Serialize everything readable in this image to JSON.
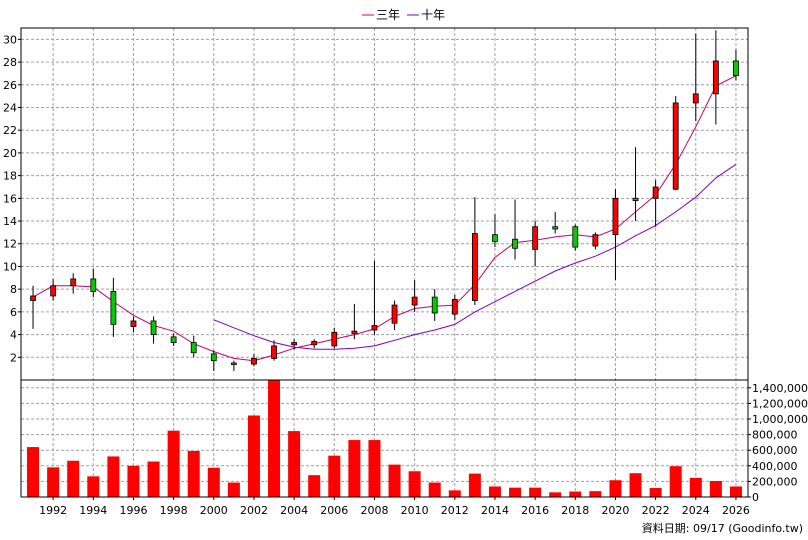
{
  "chart_data": {
    "type": "candlestick",
    "legend": [
      {
        "name": "三年",
        "color": "#cc0066"
      },
      {
        "name": "十年",
        "color": "#8000c0"
      }
    ],
    "price_axis": {
      "ticks": [
        2,
        4,
        6,
        8,
        10,
        12,
        14,
        16,
        18,
        20,
        22,
        24,
        26,
        28,
        30
      ],
      "min": 0,
      "max": 31
    },
    "volume_axis": {
      "ticks": [
        0,
        200000,
        400000,
        600000,
        800000,
        1000000,
        1200000,
        1400000
      ],
      "tick_labels": [
        "0",
        "200,000",
        "400,000",
        "600,000",
        "800,000",
        "1,000,000",
        "1,200,000",
        "1,400,000"
      ],
      "min": 0,
      "max": 1500000
    },
    "x_axis": {
      "ticks": [
        1992,
        1994,
        1996,
        1998,
        2000,
        2002,
        2004,
        2006,
        2008,
        2010,
        2012,
        2014,
        2016,
        2018,
        2020,
        2022,
        2024,
        2026
      ]
    },
    "candles": [
      {
        "year": 1991,
        "open": 7.0,
        "close": 7.4,
        "high": 8.3,
        "low": 4.5
      },
      {
        "year": 1992,
        "open": 7.4,
        "close": 8.3,
        "high": 8.9,
        "low": 7.0
      },
      {
        "year": 1993,
        "open": 8.3,
        "close": 8.9,
        "high": 9.4,
        "low": 7.6
      },
      {
        "year": 1994,
        "open": 8.9,
        "close": 7.8,
        "high": 9.8,
        "low": 7.3
      },
      {
        "year": 1995,
        "open": 7.8,
        "close": 4.9,
        "high": 9.0,
        "low": 3.8
      },
      {
        "year": 1996,
        "open": 4.7,
        "close": 5.2,
        "high": 5.6,
        "low": 4.2
      },
      {
        "year": 1997,
        "open": 5.2,
        "close": 4.0,
        "high": 5.6,
        "low": 3.2
      },
      {
        "year": 1998,
        "open": 3.8,
        "close": 3.3,
        "high": 4.1,
        "low": 3.0
      },
      {
        "year": 1999,
        "open": 3.3,
        "close": 2.4,
        "high": 3.9,
        "low": 2.0
      },
      {
        "year": 2000,
        "open": 2.3,
        "close": 1.7,
        "high": 2.6,
        "low": 0.8
      },
      {
        "year": 2001,
        "open": 1.5,
        "close": 1.4,
        "high": 1.7,
        "low": 0.8
      },
      {
        "year": 2002,
        "open": 1.4,
        "close": 1.9,
        "high": 2.3,
        "low": 1.2
      },
      {
        "year": 2003,
        "open": 1.9,
        "close": 3.0,
        "high": 3.5,
        "low": 1.7
      },
      {
        "year": 2004,
        "open": 3.1,
        "close": 3.3,
        "high": 3.6,
        "low": 2.7
      },
      {
        "year": 2005,
        "open": 3.1,
        "close": 3.4,
        "high": 3.6,
        "low": 2.8
      },
      {
        "year": 2006,
        "open": 3.0,
        "close": 4.2,
        "high": 4.6,
        "low": 2.8
      },
      {
        "year": 2007,
        "open": 4.1,
        "close": 4.3,
        "high": 6.7,
        "low": 3.6
      },
      {
        "year": 2008,
        "open": 4.4,
        "close": 4.8,
        "high": 10.5,
        "low": 4.0
      },
      {
        "year": 2009,
        "open": 5.0,
        "close": 6.6,
        "high": 7.0,
        "low": 4.4
      },
      {
        "year": 2010,
        "open": 6.6,
        "close": 7.3,
        "high": 8.8,
        "low": 6.0
      },
      {
        "year": 2011,
        "open": 7.3,
        "close": 5.9,
        "high": 8.0,
        "low": 5.2
      },
      {
        "year": 2012,
        "open": 5.8,
        "close": 7.1,
        "high": 7.5,
        "low": 5.3
      },
      {
        "year": 2013,
        "open": 7.0,
        "close": 12.9,
        "high": 16.1,
        "low": 6.6
      },
      {
        "year": 2014,
        "open": 12.8,
        "close": 12.2,
        "high": 14.6,
        "low": 11.7
      },
      {
        "year": 2015,
        "open": 12.4,
        "close": 11.6,
        "high": 15.9,
        "low": 10.6
      },
      {
        "year": 2016,
        "open": 11.5,
        "close": 13.5,
        "high": 14.0,
        "low": 10.0
      },
      {
        "year": 2017,
        "open": 13.5,
        "close": 13.3,
        "high": 14.8,
        "low": 12.9
      },
      {
        "year": 2018,
        "open": 13.5,
        "close": 11.7,
        "high": 13.7,
        "low": 11.4
      },
      {
        "year": 2019,
        "open": 11.8,
        "close": 12.8,
        "high": 13.0,
        "low": 11.5
      },
      {
        "year": 2020,
        "open": 12.8,
        "close": 16.0,
        "high": 16.8,
        "low": 8.8
      },
      {
        "year": 2021,
        "open": 16.0,
        "close": 15.8,
        "high": 20.5,
        "low": 14.0
      },
      {
        "year": 2022,
        "open": 16.0,
        "close": 17.0,
        "high": 17.6,
        "low": 13.5
      },
      {
        "year": 2023,
        "open": 16.8,
        "close": 24.4,
        "high": 25.0,
        "low": 16.7
      },
      {
        "year": 2024,
        "open": 24.4,
        "close": 25.2,
        "high": 30.5,
        "low": 22.8
      },
      {
        "year": 2025,
        "open": 25.2,
        "close": 28.1,
        "high": 30.8,
        "low": 22.5
      },
      {
        "year": 2026,
        "open": 28.1,
        "close": 26.8,
        "high": 29.1,
        "low": 26.4
      }
    ],
    "ma3": [
      {
        "year": 1991,
        "value": 7.3
      },
      {
        "year": 1992,
        "value": 8.3
      },
      {
        "year": 1993,
        "value": 8.3
      },
      {
        "year": 1994,
        "value": 8.2
      },
      {
        "year": 1995,
        "value": 6.9
      },
      {
        "year": 1996,
        "value": 5.7
      },
      {
        "year": 1997,
        "value": 4.8
      },
      {
        "year": 1998,
        "value": 4.3
      },
      {
        "year": 1999,
        "value": 3.2
      },
      {
        "year": 2000,
        "value": 2.5
      },
      {
        "year": 2001,
        "value": 1.9
      },
      {
        "year": 2002,
        "value": 1.7
      },
      {
        "year": 2003,
        "value": 2.2
      },
      {
        "year": 2004,
        "value": 2.8
      },
      {
        "year": 2005,
        "value": 3.2
      },
      {
        "year": 2006,
        "value": 3.6
      },
      {
        "year": 2007,
        "value": 4.0
      },
      {
        "year": 2008,
        "value": 4.5
      },
      {
        "year": 2009,
        "value": 5.6
      },
      {
        "year": 2010,
        "value": 6.3
      },
      {
        "year": 2011,
        "value": 6.5
      },
      {
        "year": 2012,
        "value": 6.6
      },
      {
        "year": 2013,
        "value": 8.4
      },
      {
        "year": 2014,
        "value": 10.8
      },
      {
        "year": 2015,
        "value": 12.1
      },
      {
        "year": 2016,
        "value": 12.3
      },
      {
        "year": 2017,
        "value": 12.6
      },
      {
        "year": 2018,
        "value": 12.8
      },
      {
        "year": 2019,
        "value": 12.6
      },
      {
        "year": 2020,
        "value": 13.3
      },
      {
        "year": 2021,
        "value": 14.8
      },
      {
        "year": 2022,
        "value": 16.3
      },
      {
        "year": 2023,
        "value": 19.0
      },
      {
        "year": 2024,
        "value": 22.3
      },
      {
        "year": 2025,
        "value": 25.9
      },
      {
        "year": 2026,
        "value": 26.8
      }
    ],
    "ma10": [
      {
        "year": 2000,
        "value": 5.3
      },
      {
        "year": 2001,
        "value": 4.6
      },
      {
        "year": 2002,
        "value": 3.9
      },
      {
        "year": 2003,
        "value": 3.3
      },
      {
        "year": 2004,
        "value": 2.9
      },
      {
        "year": 2005,
        "value": 2.7
      },
      {
        "year": 2006,
        "value": 2.7
      },
      {
        "year": 2007,
        "value": 2.8
      },
      {
        "year": 2008,
        "value": 3.0
      },
      {
        "year": 2009,
        "value": 3.5
      },
      {
        "year": 2010,
        "value": 4.0
      },
      {
        "year": 2011,
        "value": 4.4
      },
      {
        "year": 2012,
        "value": 4.9
      },
      {
        "year": 2013,
        "value": 6.0
      },
      {
        "year": 2014,
        "value": 6.9
      },
      {
        "year": 2015,
        "value": 7.8
      },
      {
        "year": 2016,
        "value": 8.7
      },
      {
        "year": 2017,
        "value": 9.6
      },
      {
        "year": 2018,
        "value": 10.3
      },
      {
        "year": 2019,
        "value": 10.9
      },
      {
        "year": 2020,
        "value": 11.7
      },
      {
        "year": 2021,
        "value": 12.7
      },
      {
        "year": 2022,
        "value": 13.6
      },
      {
        "year": 2023,
        "value": 14.8
      },
      {
        "year": 2024,
        "value": 16.1
      },
      {
        "year": 2025,
        "value": 17.8
      },
      {
        "year": 2026,
        "value": 19.0
      }
    ],
    "volume": [
      {
        "year": 1991,
        "value": 640000
      },
      {
        "year": 1992,
        "value": 380000
      },
      {
        "year": 1993,
        "value": 465000
      },
      {
        "year": 1994,
        "value": 265000
      },
      {
        "year": 1995,
        "value": 520000
      },
      {
        "year": 1996,
        "value": 400000
      },
      {
        "year": 1997,
        "value": 455000
      },
      {
        "year": 1998,
        "value": 850000
      },
      {
        "year": 1999,
        "value": 590000
      },
      {
        "year": 2000,
        "value": 375000
      },
      {
        "year": 2001,
        "value": 185000
      },
      {
        "year": 2002,
        "value": 1045000
      },
      {
        "year": 2003,
        "value": 1500000
      },
      {
        "year": 2004,
        "value": 845000
      },
      {
        "year": 2005,
        "value": 280000
      },
      {
        "year": 2006,
        "value": 530000
      },
      {
        "year": 2007,
        "value": 730000
      },
      {
        "year": 2008,
        "value": 730000
      },
      {
        "year": 2009,
        "value": 415000
      },
      {
        "year": 2010,
        "value": 330000
      },
      {
        "year": 2011,
        "value": 185000
      },
      {
        "year": 2012,
        "value": 85000
      },
      {
        "year": 2013,
        "value": 300000
      },
      {
        "year": 2014,
        "value": 135000
      },
      {
        "year": 2015,
        "value": 120000
      },
      {
        "year": 2016,
        "value": 120000
      },
      {
        "year": 2017,
        "value": 60000
      },
      {
        "year": 2018,
        "value": 70000
      },
      {
        "year": 2019,
        "value": 75000
      },
      {
        "year": 2020,
        "value": 215000
      },
      {
        "year": 2021,
        "value": 305000
      },
      {
        "year": 2022,
        "value": 115000
      },
      {
        "year": 2023,
        "value": 395000
      },
      {
        "year": 2024,
        "value": 245000
      },
      {
        "year": 2025,
        "value": 205000
      },
      {
        "year": 2026,
        "value": 135000
      }
    ],
    "colors": {
      "up": "#ff0000",
      "down": "#00cc00",
      "volume": "#ff0000",
      "grid": "#a0a0a0",
      "frame": "#000000"
    }
  },
  "credit": "資料日期: 09/17  (Goodinfo.tw)"
}
